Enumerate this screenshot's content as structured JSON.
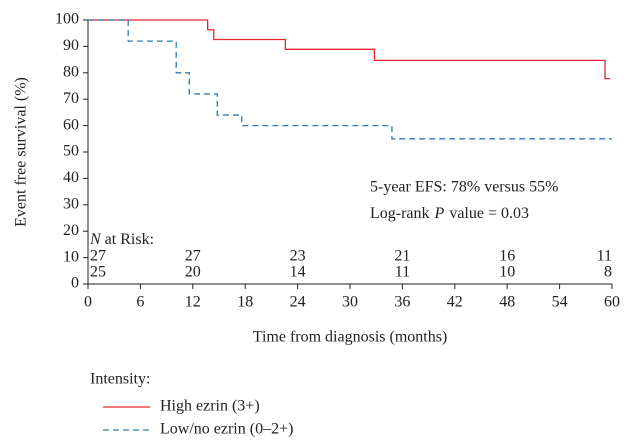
{
  "chart_data": {
    "type": "step",
    "y_label": "Event free survival (%)",
    "x_label": "Time from diagnosis (months)",
    "xlim": [
      0,
      60
    ],
    "xticks": [
      0,
      6,
      12,
      18,
      24,
      30,
      36,
      42,
      48,
      54,
      60
    ],
    "ylim": [
      0,
      100
    ],
    "yticks": [
      0,
      10,
      20,
      30,
      40,
      50,
      60,
      70,
      80,
      90,
      100
    ],
    "series": [
      {
        "name": "High ezrin (3+)",
        "color": "#e3262d",
        "dash": false,
        "x": [
          0,
          13.7,
          13.7,
          14.4,
          14.4,
          22.6,
          22.6,
          32.8,
          32.8,
          59.2,
          59.2,
          59.8
        ],
        "values": [
          100,
          100,
          96.3,
          96.3,
          92.6,
          92.6,
          88.9,
          88.9,
          84.7,
          84.7,
          77.8,
          77.8
        ]
      },
      {
        "name": "Low/no ezrin (0–2+)",
        "color": "#2b7bbd",
        "dash": true,
        "x": [
          0,
          4.6,
          4.6,
          10.1,
          10.1,
          11.6,
          11.6,
          14.8,
          14.8,
          17.6,
          17.6,
          34.8,
          34.8,
          60
        ],
        "values": [
          100,
          100,
          92,
          92,
          80,
          80,
          72,
          72,
          64,
          64,
          60,
          60,
          55,
          55
        ]
      }
    ],
    "annotations": [
      "5-year EFS: 78% versus 55%",
      [
        "Log-rank",
        "P",
        "value = 0.03"
      ]
    ],
    "at_risk": {
      "label": [
        "N",
        "at Risk:"
      ],
      "times": [
        0,
        12,
        24,
        36,
        48,
        60
      ],
      "rows": [
        [
          27,
          27,
          23,
          21,
          16,
          11
        ],
        [
          25,
          20,
          14,
          11,
          10,
          8
        ]
      ]
    },
    "legend_title": "Intensity:"
  }
}
